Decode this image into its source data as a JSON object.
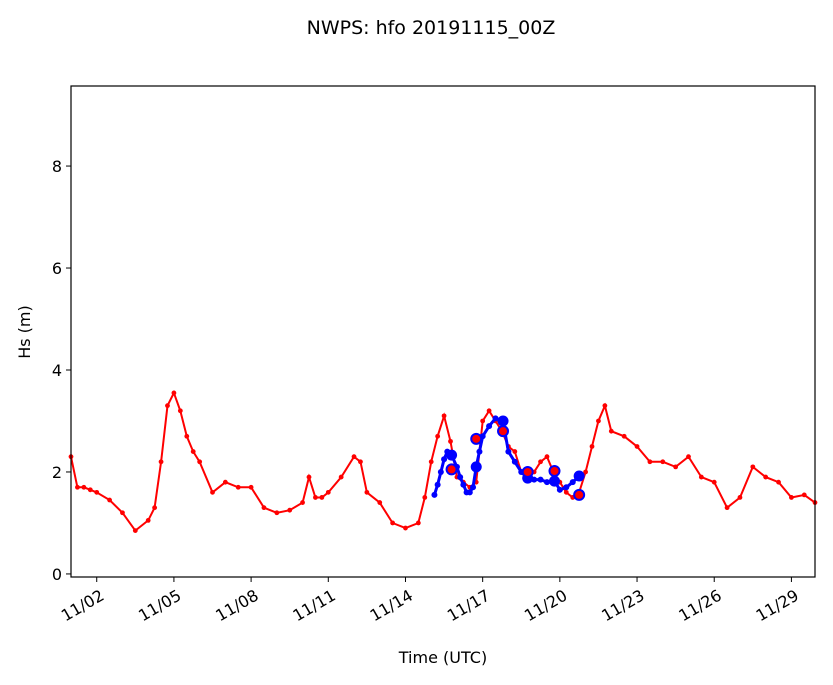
{
  "chart_data": {
    "type": "line",
    "title": "NWPS: hfo 20191115_00Z",
    "xlabel": "Time (UTC)",
    "ylabel": "Hs (m)",
    "xlim": [
      "2019-11-01T00",
      "2019-11-29T22"
    ],
    "ylim": [
      -0.06,
      9.57
    ],
    "yticks": [
      0,
      2,
      4,
      6,
      8
    ],
    "ytick_labels": [
      "0",
      "2",
      "4",
      "6",
      "8"
    ],
    "xticks": [
      "2019-11-02T00",
      "2019-11-05T00",
      "2019-11-08T00",
      "2019-11-11T00",
      "2019-11-14T00",
      "2019-11-17T00",
      "2019-11-20T00",
      "2019-11-23T00",
      "2019-11-26T00",
      "2019-11-29T00"
    ],
    "xtick_labels": [
      "11/02",
      "11/05",
      "11/08",
      "11/11",
      "11/14",
      "11/17",
      "11/20",
      "11/23",
      "11/26",
      "11/29"
    ],
    "grid": false,
    "colors": {
      "observed": "#ff0000",
      "model": "#0000ff"
    },
    "series": [
      {
        "color": "#ff0000",
        "points": [
          [
            "2019-11-01T00",
            2.3
          ],
          [
            "2019-11-01T06",
            1.7
          ],
          [
            "2019-11-01T12",
            1.7
          ],
          [
            "2019-11-01T18",
            1.65
          ],
          [
            "2019-11-02T00",
            1.6
          ],
          [
            "2019-11-02T12",
            1.45
          ],
          [
            "2019-11-03T00",
            1.2
          ],
          [
            "2019-11-03T12",
            0.85
          ],
          [
            "2019-11-04T00",
            1.05
          ],
          [
            "2019-11-04T06",
            1.3
          ],
          [
            "2019-11-04T12",
            2.2
          ],
          [
            "2019-11-04T18",
            3.3
          ],
          [
            "2019-11-05T00",
            3.55
          ],
          [
            "2019-11-05T06",
            3.2
          ],
          [
            "2019-11-05T12",
            2.7
          ],
          [
            "2019-11-05T18",
            2.4
          ],
          [
            "2019-11-06T00",
            2.2
          ],
          [
            "2019-11-06T12",
            1.6
          ],
          [
            "2019-11-07T00",
            1.8
          ],
          [
            "2019-11-07T12",
            1.7
          ],
          [
            "2019-11-08T00",
            1.7
          ],
          [
            "2019-11-08T12",
            1.3
          ],
          [
            "2019-11-09T00",
            1.2
          ],
          [
            "2019-11-09T12",
            1.25
          ],
          [
            "2019-11-10T00",
            1.4
          ],
          [
            "2019-11-10T06",
            1.9
          ],
          [
            "2019-11-10T12",
            1.5
          ],
          [
            "2019-11-10T18",
            1.5
          ],
          [
            "2019-11-11T00",
            1.6
          ],
          [
            "2019-11-11T12",
            1.9
          ],
          [
            "2019-11-12T00",
            2.3
          ],
          [
            "2019-11-12T06",
            2.2
          ],
          [
            "2019-11-12T12",
            1.6
          ],
          [
            "2019-11-13T00",
            1.4
          ],
          [
            "2019-11-13T12",
            1.0
          ],
          [
            "2019-11-14T00",
            0.9
          ],
          [
            "2019-11-14T12",
            1.0
          ],
          [
            "2019-11-14T18",
            1.5
          ],
          [
            "2019-11-15T00",
            2.2
          ],
          [
            "2019-11-15T06",
            2.7
          ],
          [
            "2019-11-15T12",
            3.1
          ],
          [
            "2019-11-15T18",
            2.6
          ],
          [
            "2019-11-16T00",
            1.9
          ],
          [
            "2019-11-16T06",
            1.8
          ],
          [
            "2019-11-16T12",
            1.7
          ],
          [
            "2019-11-16T18",
            1.8
          ],
          [
            "2019-11-17T00",
            3.0
          ],
          [
            "2019-11-17T06",
            3.2
          ],
          [
            "2019-11-17T12",
            3.0
          ],
          [
            "2019-11-17T18",
            2.8
          ],
          [
            "2019-11-18T00",
            2.5
          ],
          [
            "2019-11-18T06",
            2.4
          ],
          [
            "2019-11-18T12",
            2.0
          ],
          [
            "2019-11-18T18",
            2.0
          ],
          [
            "2019-11-19T00",
            2.0
          ],
          [
            "2019-11-19T06",
            2.2
          ],
          [
            "2019-11-19T12",
            2.3
          ],
          [
            "2019-11-19T18",
            2.0
          ],
          [
            "2019-11-20T00",
            1.8
          ],
          [
            "2019-11-20T06",
            1.6
          ],
          [
            "2019-11-20T12",
            1.5
          ],
          [
            "2019-11-20T18",
            1.6
          ],
          [
            "2019-11-21T00",
            2.0
          ],
          [
            "2019-11-21T06",
            2.5
          ],
          [
            "2019-11-21T12",
            3.0
          ],
          [
            "2019-11-21T18",
            3.3
          ],
          [
            "2019-11-22T00",
            2.8
          ],
          [
            "2019-11-22T12",
            2.7
          ],
          [
            "2019-11-23T00",
            2.5
          ],
          [
            "2019-11-23T12",
            2.2
          ],
          [
            "2019-11-24T00",
            2.2
          ],
          [
            "2019-11-24T12",
            2.1
          ],
          [
            "2019-11-25T00",
            2.3
          ],
          [
            "2019-11-25T12",
            1.9
          ],
          [
            "2019-11-26T00",
            1.8
          ],
          [
            "2019-11-26T12",
            1.3
          ],
          [
            "2019-11-27T00",
            1.5
          ],
          [
            "2019-11-27T12",
            2.1
          ],
          [
            "2019-11-28T00",
            1.9
          ],
          [
            "2019-11-28T12",
            1.8
          ],
          [
            "2019-11-29T00",
            1.5
          ],
          [
            "2019-11-29T12",
            1.55
          ],
          [
            "2019-11-29T22",
            1.4
          ]
        ]
      },
      {
        "color": "#0000ff",
        "points": [
          [
            "2019-11-15T03",
            1.55
          ],
          [
            "2019-11-15T06",
            1.75
          ],
          [
            "2019-11-15T09",
            2.0
          ],
          [
            "2019-11-15T12",
            2.25
          ],
          [
            "2019-11-15T15",
            2.4
          ],
          [
            "2019-11-15T19",
            2.33
          ],
          [
            "2019-11-16T00",
            2.1
          ],
          [
            "2019-11-16T03",
            1.9
          ],
          [
            "2019-11-16T06",
            1.75
          ],
          [
            "2019-11-16T09",
            1.6
          ],
          [
            "2019-11-16T12",
            1.6
          ],
          [
            "2019-11-16T15",
            1.7
          ],
          [
            "2019-11-16T18",
            2.1
          ],
          [
            "2019-11-16T21",
            2.4
          ],
          [
            "2019-11-17T00",
            2.7
          ],
          [
            "2019-11-17T06",
            2.9
          ],
          [
            "2019-11-17T12",
            3.05
          ],
          [
            "2019-11-17T19",
            3.0
          ],
          [
            "2019-11-18T00",
            2.4
          ],
          [
            "2019-11-18T06",
            2.2
          ],
          [
            "2019-11-18T12",
            2.0
          ],
          [
            "2019-11-18T18",
            1.88
          ],
          [
            "2019-11-19T00",
            1.85
          ],
          [
            "2019-11-19T06",
            1.85
          ],
          [
            "2019-11-19T12",
            1.8
          ],
          [
            "2019-11-19T19",
            1.82
          ],
          [
            "2019-11-20T00",
            1.65
          ],
          [
            "2019-11-20T06",
            1.7
          ],
          [
            "2019-11-20T12",
            1.8
          ],
          [
            "2019-11-20T18",
            1.92
          ]
        ],
        "large_markers": [
          [
            "2019-11-15T19",
            2.33
          ],
          [
            "2019-11-16T18",
            2.1
          ],
          [
            "2019-11-17T19",
            3.0
          ],
          [
            "2019-11-18T18",
            1.88
          ],
          [
            "2019-11-19T19",
            1.82
          ],
          [
            "2019-11-20T18",
            1.92
          ]
        ],
        "circle_markers": [
          [
            "2019-11-15T19",
            2.05
          ],
          [
            "2019-11-16T18",
            2.65
          ],
          [
            "2019-11-17T19",
            2.8
          ],
          [
            "2019-11-18T18",
            2.0
          ],
          [
            "2019-11-19T19",
            2.02
          ],
          [
            "2019-11-20T18",
            1.55
          ]
        ]
      }
    ]
  }
}
